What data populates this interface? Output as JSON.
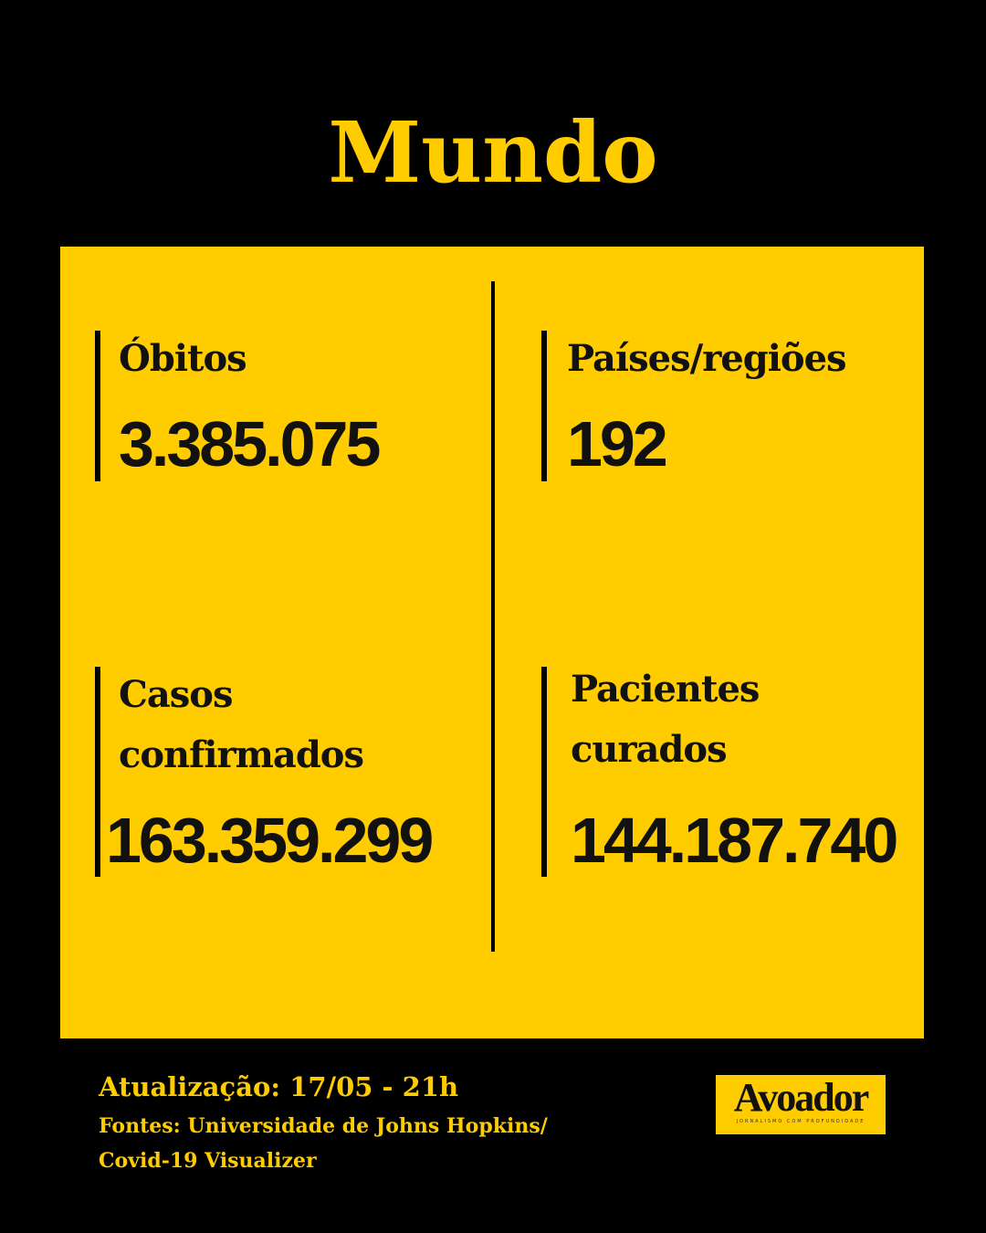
{
  "title": "Mundo",
  "stats": {
    "deaths": {
      "label": "Óbitos",
      "value": "3.385.075"
    },
    "countries": {
      "label": "Países/regiões",
      "value": "192"
    },
    "cases": {
      "label_line1": "Casos",
      "label_line2": "confirmados",
      "value": "163.359.299"
    },
    "recovered": {
      "label_line1": "Pacientes",
      "label_line2": "curados",
      "value": "144.187.740"
    }
  },
  "footer": {
    "updated": "Atualização: 17/05 - 21h",
    "sources_line1": "Fontes: Universidade de Johns Hopkins/",
    "sources_line2": "Covid-19 Visualizer"
  },
  "logo": {
    "name": "Avoador",
    "tagline": "JORNALISMO COM PROFUNDIDADE"
  },
  "colors": {
    "accent": "#FFCC00",
    "background": "#000000",
    "text": "#111111"
  }
}
